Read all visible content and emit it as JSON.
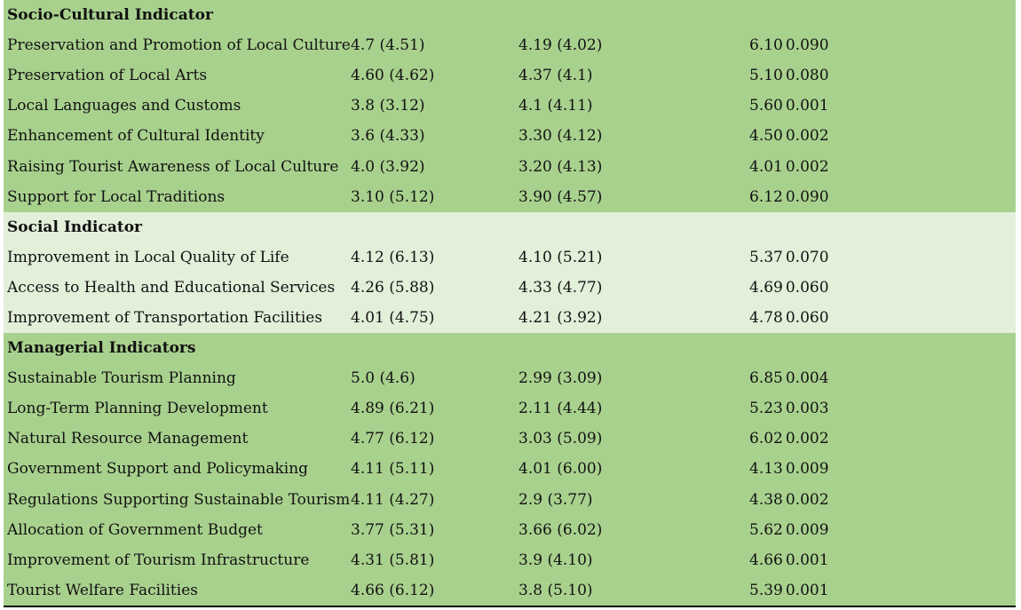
{
  "sections": [
    {
      "title": "Socio-Cultural Indicator",
      "shade": "green",
      "rows": [
        {
          "label": "Preservation and Promotion of Local Culture",
          "a": "4.7 (4.51)",
          "b": "4.19 (4.02)",
          "t": "6.10",
          "p": "0.090"
        },
        {
          "label": "Preservation of Local Arts",
          "a": "4.60 (4.62)",
          "b": "4.37 (4.1)",
          "t": "5.10",
          "p": "0.080"
        },
        {
          "label": "Local Languages and Customs",
          "a": "3.8 (3.12)",
          "b": "4.1 (4.11)",
          "t": "5.60",
          "p": "0.001"
        },
        {
          "label": "Enhancement of Cultural Identity",
          "a": "3.6 (4.33)",
          "b": "3.30 (4.12)",
          "t": "4.50",
          "p": "0.002"
        },
        {
          "label": "Raising Tourist Awareness of Local Culture",
          "a": "4.0 (3.92)",
          "b": "3.20 (4.13)",
          "t": "4.01",
          "p": "0.002"
        },
        {
          "label": "Support for Local Traditions",
          "a": "3.10 (5.12)",
          "b": "3.90 (4.57)",
          "t": "6.12",
          "p": "0.090"
        }
      ]
    },
    {
      "title": "Social Indicator",
      "shade": "light",
      "rows": [
        {
          "label": "Improvement in Local Quality of Life",
          "a": "4.12 (6.13)",
          "b": "4.10 (5.21)",
          "t": "5.37",
          "p": "0.070"
        },
        {
          "label": "Access to Health and Educational Services",
          "a": "4.26 (5.88)",
          "b": "4.33 (4.77)",
          "t": "4.69",
          "p": "0.060"
        },
        {
          "label": "Improvement of Transportation Facilities",
          "a": "4.01 (4.75)",
          "b": "4.21 (3.92)",
          "t": "4.78",
          "p": "0.060"
        }
      ]
    },
    {
      "title": "Managerial Indicators",
      "shade": "green",
      "rows": [
        {
          "label": "Sustainable Tourism Planning",
          "a": "5.0 (4.6)",
          "b": "2.99 (3.09)",
          "t": "6.85",
          "p": "0.004"
        },
        {
          "label": "Long-Term Planning Development",
          "a": "4.89 (6.21)",
          "b": "2.11 (4.44)",
          "t": "5.23",
          "p": "0.003"
        },
        {
          "label": "Natural Resource Management",
          "a": "4.77 (6.12)",
          "b": "3.03 (5.09)",
          "t": "6.02",
          "p": "0.002"
        },
        {
          "label": "Government Support and Policymaking",
          "a": "4.11 (5.11)",
          "b": "4.01 (6.00)",
          "t": "4.13",
          "p": "0.009"
        },
        {
          "label": "Regulations Supporting Sustainable Tourism",
          "a": "4.11 (4.27)",
          "b": "2.9 (3.77)",
          "t": "4.38",
          "p": "0.002"
        },
        {
          "label": "Allocation of Government Budget",
          "a": "3.77 (5.31)",
          "b": "3.66 (6.02)",
          "t": "5.62",
          "p": "0.009"
        },
        {
          "label": "Improvement of Tourism Infrastructure",
          "a": "4.31 (5.81)",
          "b": "3.9 (4.10)",
          "t": "4.66",
          "p": "0.001"
        },
        {
          "label": "Tourist Welfare Facilities",
          "a": "4.66 (6.12)",
          "b": "3.8 (5.10)",
          "t": "5.39",
          "p": "0.001"
        }
      ]
    }
  ]
}
